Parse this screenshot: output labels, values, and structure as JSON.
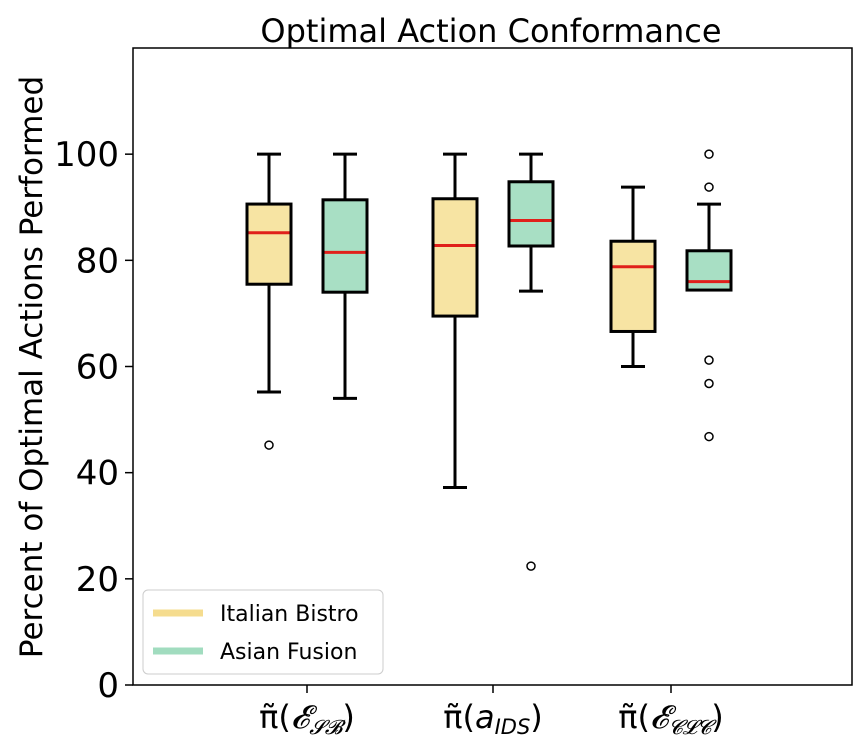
{
  "chart_data": {
    "type": "box",
    "title": "Optimal Action Conformance",
    "xlabel": "",
    "ylabel": "Percent of Optimal Actions Performed",
    "ylim": [
      0,
      120
    ],
    "yticks": [
      0,
      20,
      40,
      60,
      80,
      100
    ],
    "categories": [
      "π̃(𝓔𝓢𝓑)",
      "π̃(a_IDS)",
      "π̃(𝓔𝓒𝓛𝓒)"
    ],
    "legend_position": "lower-left",
    "series": [
      {
        "name": "Italian Bistro",
        "color": "#f7e4a3",
        "legend_color": "#f5dc8e",
        "boxes": [
          {
            "whisker_low": 55.2,
            "q1": 75.5,
            "median": 85.2,
            "q3": 90.6,
            "whisker_high": 100,
            "outliers": [
              45.2
            ]
          },
          {
            "whisker_low": 37.2,
            "q1": 69.5,
            "median": 82.8,
            "q3": 91.6,
            "whisker_high": 100,
            "outliers": []
          },
          {
            "whisker_low": 60.0,
            "q1": 66.6,
            "median": 78.8,
            "q3": 83.6,
            "whisker_high": 93.8,
            "outliers": []
          }
        ]
      },
      {
        "name": "Asian Fusion",
        "color": "#a8dfc4",
        "legend_color": "#a1dcbf",
        "boxes": [
          {
            "whisker_low": 54.0,
            "q1": 74.0,
            "median": 81.5,
            "q3": 91.4,
            "whisker_high": 100,
            "outliers": []
          },
          {
            "whisker_low": 74.2,
            "q1": 82.7,
            "median": 87.5,
            "q3": 94.8,
            "whisker_high": 100,
            "outliers": [
              22.4
            ]
          },
          {
            "whisker_low": 74.4,
            "q1": 74.4,
            "median": 76.0,
            "q3": 81.8,
            "whisker_high": 90.6,
            "outliers": [
              100,
              93.8,
              61.2,
              56.8,
              46.8
            ]
          }
        ]
      }
    ],
    "median_color": "#e0201b"
  }
}
